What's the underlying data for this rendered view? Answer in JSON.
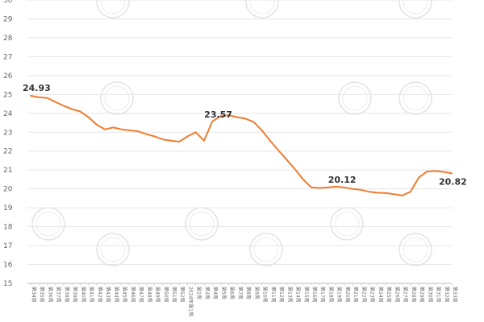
{
  "chart_data": {
    "type": "line",
    "title": "",
    "xlabel": "",
    "ylabel": "",
    "ylim": [
      15,
      30
    ],
    "yticks": [
      15,
      16,
      17,
      18,
      19,
      20,
      21,
      22,
      23,
      24,
      25,
      26,
      27,
      28,
      29,
      30
    ],
    "grid": true,
    "legend": "none",
    "line_color": "#ed7d31",
    "watermark": "新浪财经",
    "x": [
      "第34周",
      "第35周",
      "第36周",
      "第37周",
      "第38周",
      "第39周",
      "第40周",
      "第41周",
      "第42周",
      "第43周",
      "第44周",
      "第45周",
      "第46周",
      "第47周",
      "第48周",
      "第49周",
      "第50周",
      "第51周",
      "第52周",
      "2024年第1周",
      "第2周",
      "第3周",
      "第4周",
      "第5周",
      "第6周",
      "第7周",
      "第8周",
      "第9周",
      "第10周",
      "第11周",
      "第12周",
      "第13周",
      "第14周",
      "第15周",
      "第16周",
      "第17周",
      "第18周",
      "第19周",
      "第20周",
      "第21周",
      "第22周",
      "第23周",
      "第24周",
      "第25周",
      "第26周",
      "第27周",
      "第28周",
      "第29周",
      "第30周",
      "第31周",
      "第32周",
      "第33周"
    ],
    "series": [
      {
        "values": [
          24.93,
          24.85,
          24.82,
          24.6,
          24.4,
          24.22,
          24.1,
          23.8,
          23.4,
          23.15,
          23.25,
          23.15,
          23.1,
          23.05,
          22.9,
          22.78,
          22.62,
          22.55,
          22.5,
          22.78,
          23.0,
          22.55,
          23.57,
          23.85,
          23.9,
          23.8,
          23.72,
          23.55,
          23.1,
          22.55,
          22.05,
          21.55,
          21.05,
          20.5,
          20.08,
          20.05,
          20.08,
          20.12,
          20.08,
          20.0,
          19.95,
          19.85,
          19.8,
          19.78,
          19.72,
          19.65,
          19.85,
          20.6,
          20.92,
          20.95,
          20.9,
          20.82
        ],
        "labels": [
          {
            "index": 0,
            "text": "24.93"
          },
          {
            "index": 22,
            "text": "23.57"
          },
          {
            "index": 37,
            "text": "20.12"
          },
          {
            "index": 51,
            "text": "20.82"
          }
        ]
      }
    ]
  }
}
